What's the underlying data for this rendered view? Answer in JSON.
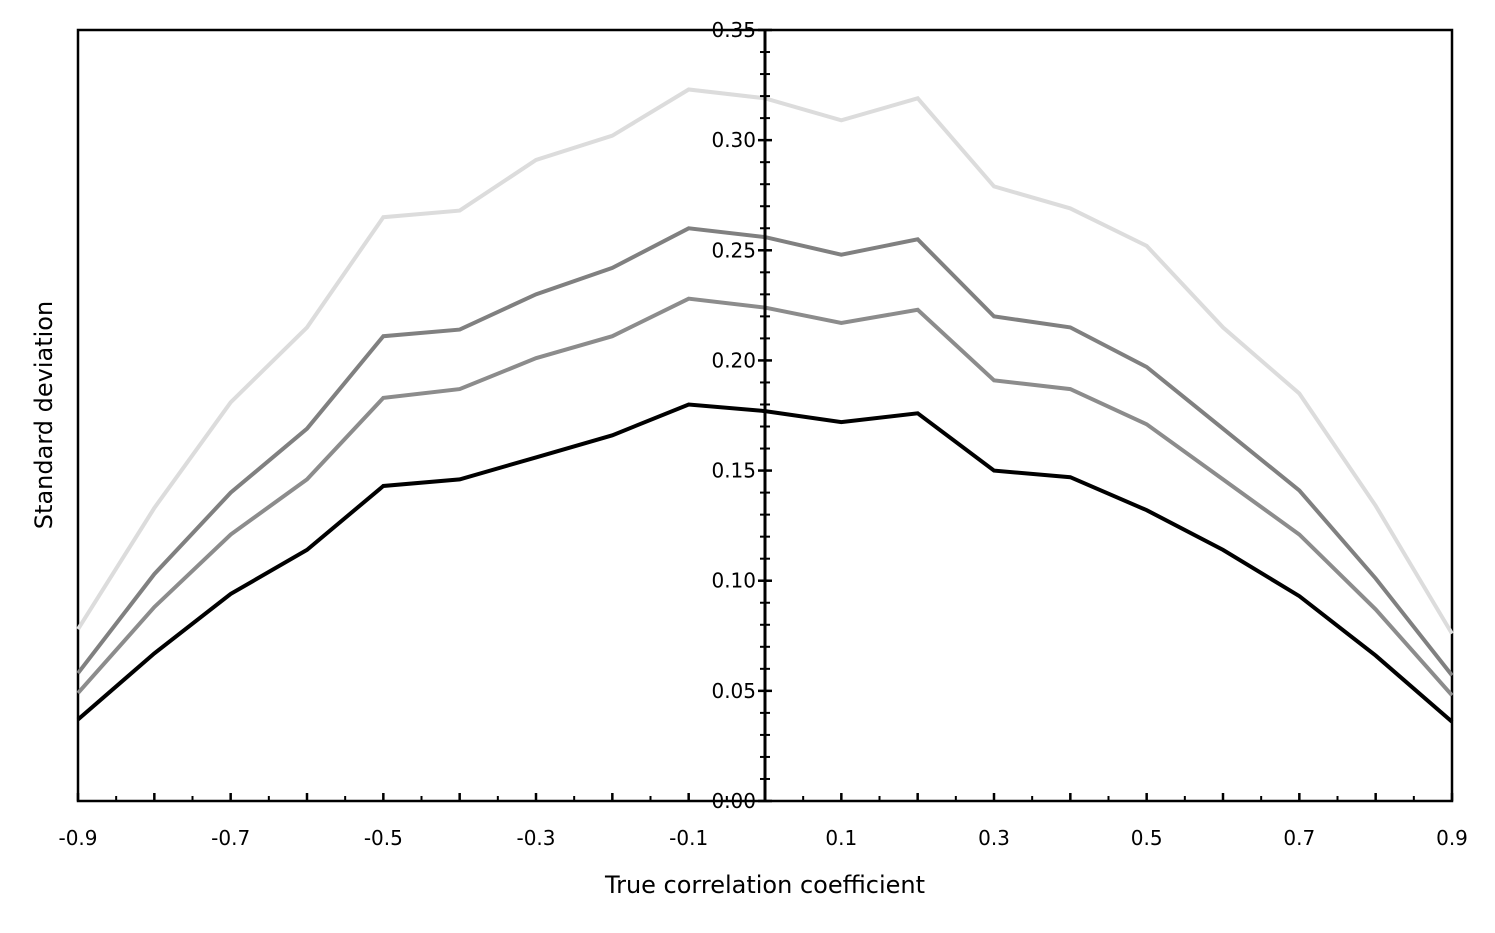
{
  "chart_data": {
    "type": "line",
    "title": "",
    "xlabel": "True correlation coefficient",
    "ylabel": "Standard deviation",
    "xlim": [
      -0.9,
      0.9
    ],
    "ylim": [
      0,
      0.35
    ],
    "x_tick_labels": [
      "-0.9",
      "-0.7",
      "-0.5",
      "-0.3",
      "-0.1",
      "0.1",
      "0.3",
      "0.5",
      "0.7",
      "0.9"
    ],
    "y_tick_labels": [
      "0.00",
      "0.05",
      "0.10",
      "0.15",
      "0.20",
      "0.25",
      "0.30",
      "0.35"
    ],
    "grid": false,
    "legend": "none",
    "x": [
      -0.9,
      -0.8,
      -0.7,
      -0.6,
      -0.5,
      -0.4,
      -0.3,
      -0.2,
      -0.1,
      0.0,
      0.1,
      0.2,
      0.3,
      0.4,
      0.5,
      0.6,
      0.7,
      0.8,
      0.9
    ],
    "series": [
      {
        "color": "#dcdcdc",
        "values": [
          0.078,
          0.133,
          0.181,
          0.215,
          0.265,
          0.268,
          0.291,
          0.302,
          0.323,
          0.319,
          0.309,
          0.319,
          0.279,
          0.269,
          0.252,
          0.215,
          0.185,
          0.134,
          0.076
        ]
      },
      {
        "color": "#808080",
        "values": [
          0.058,
          0.103,
          0.14,
          0.169,
          0.211,
          0.214,
          0.23,
          0.242,
          0.26,
          0.256,
          0.248,
          0.255,
          0.22,
          0.215,
          0.197,
          0.169,
          0.141,
          0.101,
          0.057
        ]
      },
      {
        "color": "#8c8c8c",
        "values": [
          0.049,
          0.088,
          0.121,
          0.146,
          0.183,
          0.187,
          0.201,
          0.211,
          0.228,
          0.224,
          0.217,
          0.223,
          0.191,
          0.187,
          0.171,
          0.146,
          0.121,
          0.087,
          0.048
        ]
      },
      {
        "color": "#000000",
        "values": [
          0.037,
          0.067,
          0.094,
          0.114,
          0.143,
          0.146,
          0.156,
          0.166,
          0.18,
          0.177,
          0.172,
          0.176,
          0.15,
          0.147,
          0.132,
          0.114,
          0.093,
          0.066,
          0.036
        ]
      }
    ]
  }
}
